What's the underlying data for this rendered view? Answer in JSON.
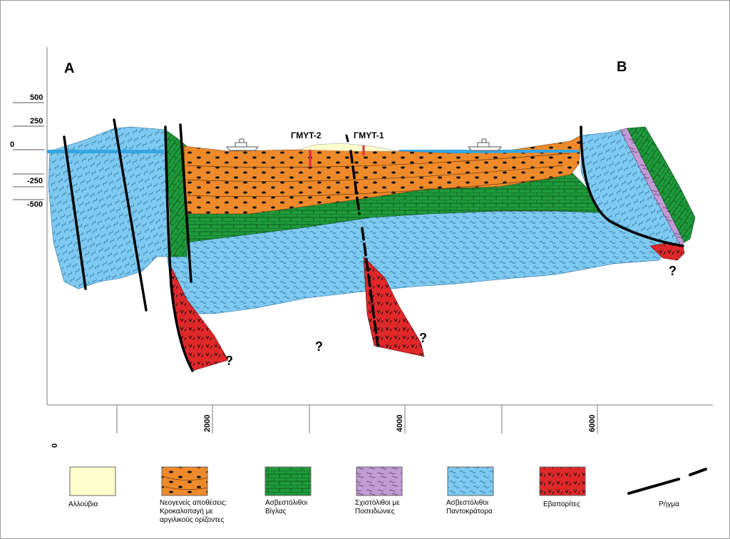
{
  "section": {
    "end_left": "A",
    "end_right": "B",
    "elevation_labels": [
      "500",
      "250",
      "0",
      "-250",
      "-500"
    ],
    "distance_labels": [
      "0",
      "2000",
      "4000",
      "6000"
    ],
    "boreholes": [
      "ΓΜΥΤ-2",
      "ΓΜΥΤ-1"
    ],
    "unknown_marker": "?"
  },
  "legend": {
    "items": [
      {
        "id": "alluvium",
        "label": "Αλλούβια",
        "color": "#ffffcc"
      },
      {
        "id": "neogene",
        "label": "Νεογενείς αποθέσεις: Κροκαλοπαγή με αργιλικούς ορίζοντες",
        "color": "#ef8a2a"
      },
      {
        "id": "vigla",
        "label": "Ασβεστόλιθοι Βίγλας",
        "color": "#1e9a3a"
      },
      {
        "id": "posidonia",
        "label": "Σχιστόλιθοι με Ποσειδώνιες",
        "color": "#c39bd3"
      },
      {
        "id": "pantokrator",
        "label": "Ασβεστόλιθοι Παντοκράτορα",
        "color": "#7ec9f0"
      },
      {
        "id": "evaporites",
        "label": "Εβαπορίτες",
        "color": "#e0282a"
      },
      {
        "id": "fault",
        "label": "Ρήγμα"
      }
    ]
  }
}
